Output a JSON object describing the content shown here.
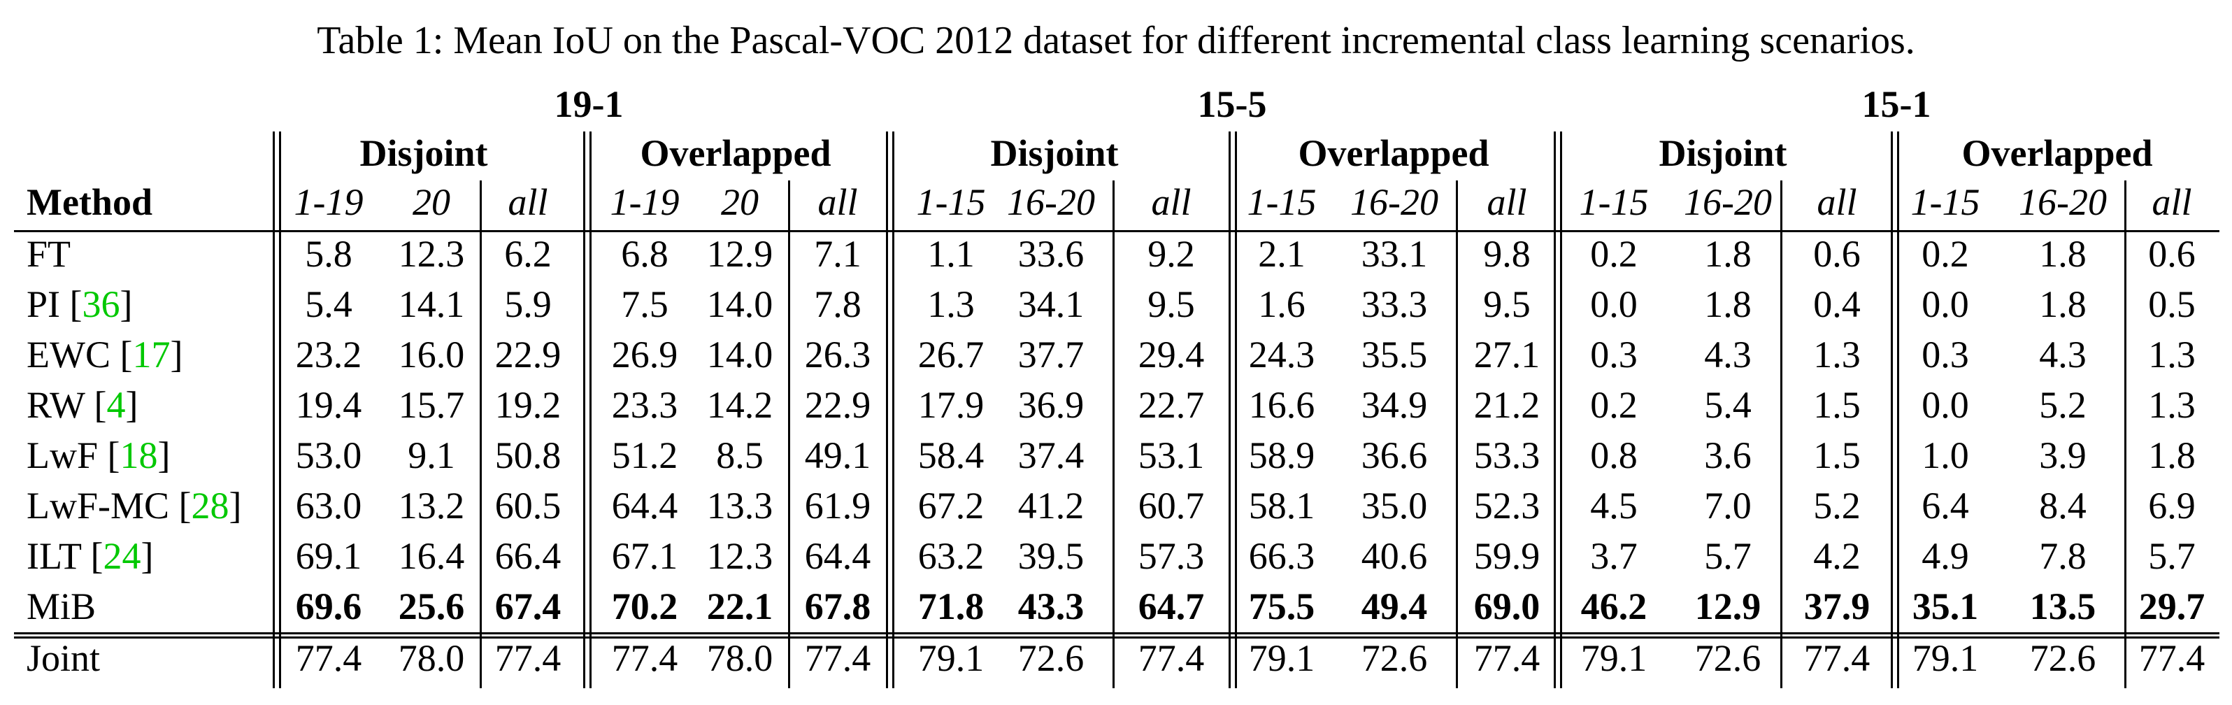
{
  "caption": "Table 1: Mean IoU on the Pascal-VOC 2012 dataset for different incremental class learning scenarios.",
  "scenarios": [
    "19-1",
    "15-5",
    "15-1"
  ],
  "settings": [
    "Disjoint",
    "Overlapped"
  ],
  "method_header": "Method",
  "subcols": [
    [
      "1-19",
      "20",
      "all"
    ],
    [
      "1-15",
      "16-20",
      "all"
    ],
    [
      "1-15",
      "16-20",
      "all"
    ]
  ],
  "rows": [
    {
      "name": "FT",
      "ref": "",
      "values": [
        "5.8",
        "12.3",
        "6.2",
        "6.8",
        "12.9",
        "7.1",
        "1.1",
        "33.6",
        "9.2",
        "2.1",
        "33.1",
        "9.8",
        "0.2",
        "1.8",
        "0.6",
        "0.2",
        "1.8",
        "0.6"
      ]
    },
    {
      "name": "PI",
      "ref": "36",
      "values": [
        "5.4",
        "14.1",
        "5.9",
        "7.5",
        "14.0",
        "7.8",
        "1.3",
        "34.1",
        "9.5",
        "1.6",
        "33.3",
        "9.5",
        "0.0",
        "1.8",
        "0.4",
        "0.0",
        "1.8",
        "0.5"
      ]
    },
    {
      "name": "EWC",
      "ref": "17",
      "values": [
        "23.2",
        "16.0",
        "22.9",
        "26.9",
        "14.0",
        "26.3",
        "26.7",
        "37.7",
        "29.4",
        "24.3",
        "35.5",
        "27.1",
        "0.3",
        "4.3",
        "1.3",
        "0.3",
        "4.3",
        "1.3"
      ]
    },
    {
      "name": "RW",
      "ref": "4",
      "values": [
        "19.4",
        "15.7",
        "19.2",
        "23.3",
        "14.2",
        "22.9",
        "17.9",
        "36.9",
        "22.7",
        "16.6",
        "34.9",
        "21.2",
        "0.2",
        "5.4",
        "1.5",
        "0.0",
        "5.2",
        "1.3"
      ]
    },
    {
      "name": "LwF",
      "ref": "18",
      "values": [
        "53.0",
        "9.1",
        "50.8",
        "51.2",
        "8.5",
        "49.1",
        "58.4",
        "37.4",
        "53.1",
        "58.9",
        "36.6",
        "53.3",
        "0.8",
        "3.6",
        "1.5",
        "1.0",
        "3.9",
        "1.8"
      ]
    },
    {
      "name": "LwF-MC",
      "ref": "28",
      "values": [
        "63.0",
        "13.2",
        "60.5",
        "64.4",
        "13.3",
        "61.9",
        "67.2",
        "41.2",
        "60.7",
        "58.1",
        "35.0",
        "52.3",
        "4.5",
        "7.0",
        "5.2",
        "6.4",
        "8.4",
        "6.9"
      ]
    },
    {
      "name": "ILT",
      "ref": "24",
      "values": [
        "69.1",
        "16.4",
        "66.4",
        "67.1",
        "12.3",
        "64.4",
        "63.2",
        "39.5",
        "57.3",
        "66.3",
        "40.6",
        "59.9",
        "3.7",
        "5.7",
        "4.2",
        "4.9",
        "7.8",
        "5.7"
      ]
    },
    {
      "name": "MiB",
      "ref": "",
      "bold": true,
      "values": [
        "69.6",
        "25.6",
        "67.4",
        "70.2",
        "22.1",
        "67.8",
        "71.8",
        "43.3",
        "64.7",
        "75.5",
        "49.4",
        "69.0",
        "46.2",
        "12.9",
        "37.9",
        "35.1",
        "13.5",
        "29.7"
      ]
    }
  ],
  "joint": {
    "name": "Joint",
    "values": [
      "77.4",
      "78.0",
      "77.4",
      "77.4",
      "78.0",
      "77.4",
      "79.1",
      "72.6",
      "77.4",
      "79.1",
      "72.6",
      "77.4",
      "79.1",
      "72.6",
      "77.4",
      "79.1",
      "72.6",
      "77.4"
    ]
  }
}
